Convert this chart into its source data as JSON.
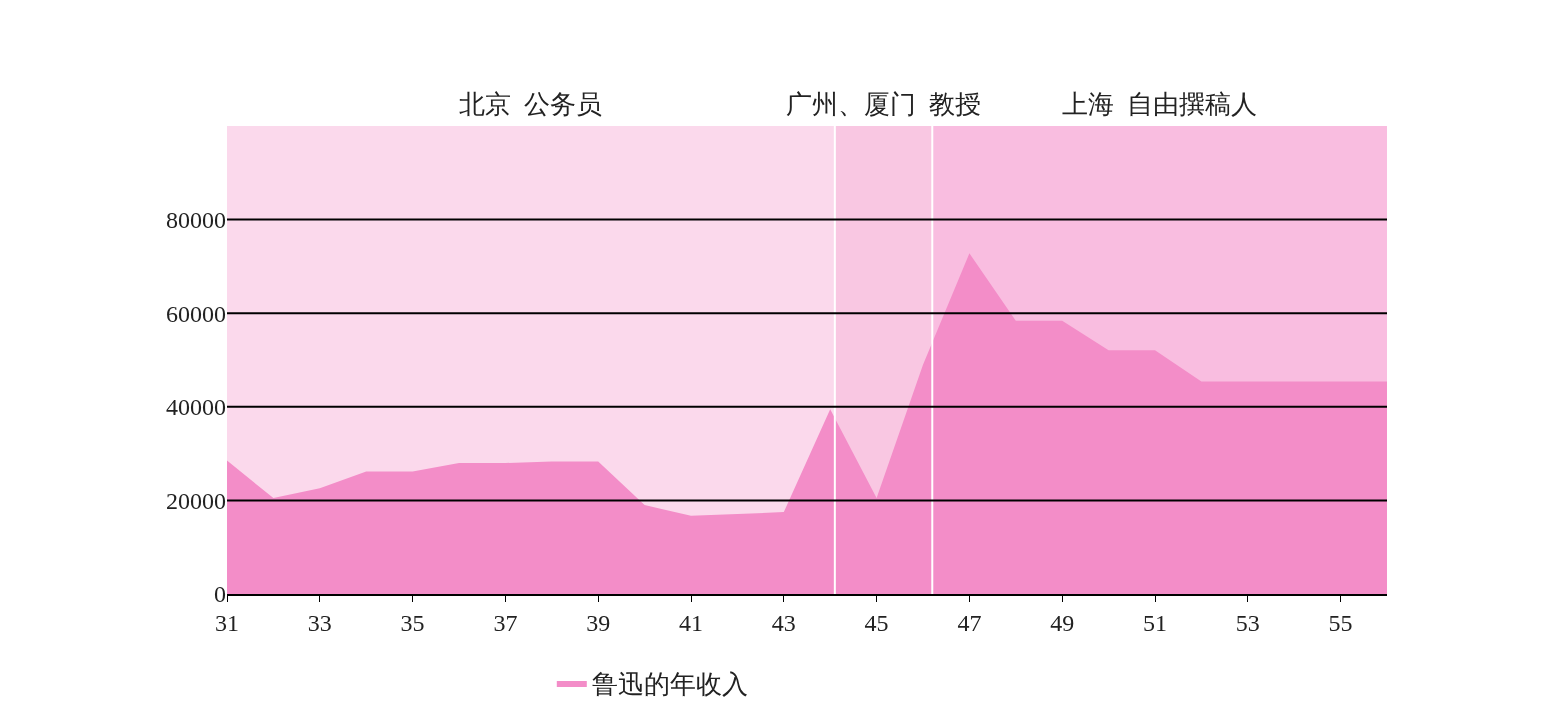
{
  "chart_data": {
    "type": "area",
    "x": [
      31,
      32,
      33,
      34,
      35,
      36,
      37,
      38,
      39,
      40,
      41,
      42,
      43,
      44,
      45,
      46,
      47,
      48,
      49,
      50,
      51,
      52,
      53,
      54,
      55,
      56
    ],
    "series": [
      {
        "name": "鲁迅的年收入",
        "color": "#f38dc8",
        "values": [
          28500,
          20500,
          22600,
          26200,
          26200,
          28000,
          28000,
          28300,
          28300,
          19000,
          16700,
          17100,
          17500,
          39500,
          20500,
          49000,
          72800,
          58400,
          58400,
          52100,
          52100,
          45400,
          45400,
          45400,
          45400,
          45400
        ]
      }
    ],
    "xlim": [
      31,
      56
    ],
    "xticks": [
      31,
      33,
      35,
      37,
      39,
      41,
      43,
      45,
      47,
      49,
      51,
      53,
      55
    ],
    "ylim": [
      0,
      100000
    ],
    "yticks": [
      0,
      20000,
      40000,
      60000,
      80000
    ],
    "grid": "y",
    "legend": "bottom",
    "ref_lines": [
      {
        "axis": "x",
        "value": 44.1,
        "color": "#ffffff"
      },
      {
        "axis": "x",
        "value": 46.2,
        "color": "#ffffff"
      }
    ],
    "bands": [
      {
        "axis": "x",
        "from": 31,
        "to": 44.1,
        "label": "北京  公务员",
        "color": "#fbd9ec"
      },
      {
        "axis": "x",
        "from": 44.1,
        "to": 46.2,
        "label": "广州、厦门  教授",
        "color": "#f9c7e2"
      },
      {
        "axis": "x",
        "from": 46.2,
        "to": 56,
        "label": "上海  自由撰稿人",
        "color": "#f9bde0"
      }
    ]
  }
}
